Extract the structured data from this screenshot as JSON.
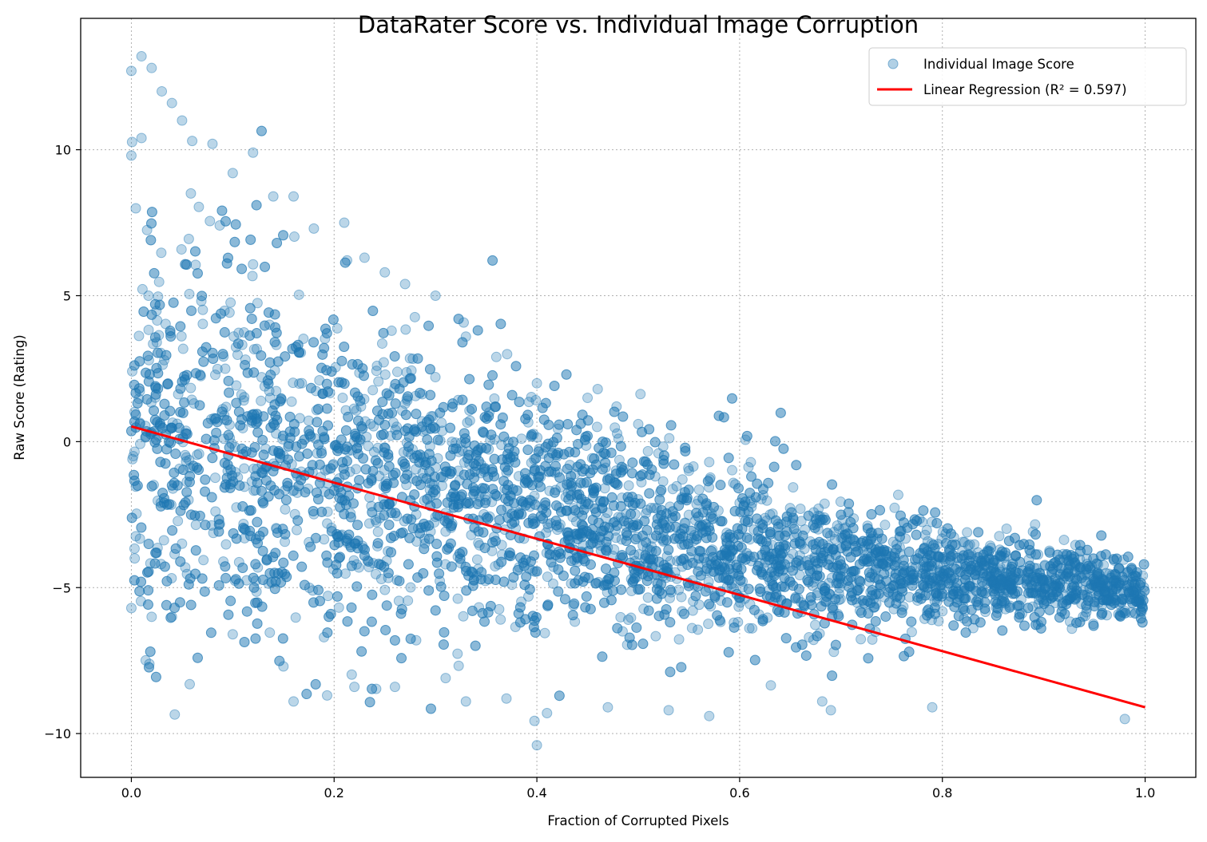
{
  "chart_data": {
    "type": "scatter",
    "title": "DataRater Score vs. Individual Image Corruption",
    "xlabel": "Fraction of Corrupted Pixels",
    "ylabel": "Raw Score (Rating)",
    "xlim": [
      -0.05,
      1.05
    ],
    "ylim": [
      -11.5,
      14.5
    ],
    "x_ticks": [
      0.0,
      0.2,
      0.4,
      0.6,
      0.8,
      1.0
    ],
    "x_tick_labels": [
      "0.0",
      "0.2",
      "0.4",
      "0.6",
      "0.8",
      "1.0"
    ],
    "y_ticks": [
      -10,
      -5,
      0,
      5,
      10
    ],
    "y_tick_labels": [
      "−10",
      "−5",
      "0",
      "5",
      "10"
    ],
    "grid": true,
    "legend_position": "top-right",
    "colors": {
      "points": "#1f77b4",
      "regression": "#ff0000",
      "grid": "#b0b0b0"
    },
    "series": [
      {
        "name": "Individual Image Score",
        "kind": "scatter",
        "points": [
          [
            0.0,
            12.7
          ],
          [
            0.01,
            13.2
          ],
          [
            0.02,
            12.8
          ],
          [
            0.03,
            12.0
          ],
          [
            0.04,
            11.6
          ],
          [
            0.05,
            11.0
          ],
          [
            0.0,
            9.8
          ],
          [
            0.01,
            10.4
          ],
          [
            0.06,
            10.3
          ],
          [
            0.08,
            10.2
          ],
          [
            0.1,
            9.2
          ],
          [
            0.12,
            9.9
          ],
          [
            0.14,
            8.4
          ],
          [
            0.16,
            8.4
          ],
          [
            0.18,
            7.3
          ],
          [
            0.21,
            7.5
          ],
          [
            0.23,
            6.3
          ],
          [
            0.25,
            5.8
          ],
          [
            0.27,
            5.4
          ],
          [
            0.3,
            5.0
          ],
          [
            0.33,
            3.6
          ],
          [
            0.36,
            2.9
          ],
          [
            0.4,
            2.0
          ],
          [
            0.45,
            1.5
          ],
          [
            0.46,
            1.8
          ],
          [
            0.5,
            0.6
          ],
          [
            0.52,
            -0.4
          ],
          [
            0.55,
            -1.0
          ],
          [
            0.57,
            -0.7
          ],
          [
            0.6,
            -2.1
          ],
          [
            0.63,
            -2.5
          ],
          [
            0.66,
            -2.3
          ],
          [
            0.68,
            -2.7
          ],
          [
            0.7,
            -3.3
          ],
          [
            0.73,
            -4.0
          ],
          [
            0.77,
            -4.3
          ],
          [
            0.8,
            -4.9
          ],
          [
            0.83,
            -5.0
          ],
          [
            0.86,
            -5.2
          ],
          [
            0.9,
            -5.5
          ],
          [
            0.93,
            -5.4
          ],
          [
            0.98,
            -5.8
          ],
          [
            0.0,
            -5.7
          ],
          [
            0.02,
            -6.0
          ],
          [
            0.04,
            -6.0
          ],
          [
            0.1,
            -6.6
          ],
          [
            0.15,
            -7.7
          ],
          [
            0.16,
            -8.9
          ],
          [
            0.19,
            -6.7
          ],
          [
            0.22,
            -8.4
          ],
          [
            0.26,
            -8.4
          ],
          [
            0.31,
            -8.1
          ],
          [
            0.33,
            -8.9
          ],
          [
            0.37,
            -8.8
          ],
          [
            0.41,
            -9.3
          ],
          [
            0.4,
            -10.4
          ],
          [
            0.47,
            -9.1
          ],
          [
            0.53,
            -9.2
          ],
          [
            0.57,
            -9.4
          ],
          [
            0.69,
            -9.2
          ],
          [
            0.79,
            -9.1
          ],
          [
            0.98,
            -9.5
          ]
        ]
      },
      {
        "name": "Linear Regression (R² = 0.597)",
        "kind": "line",
        "points": [
          [
            0.0,
            0.52
          ],
          [
            1.0,
            -9.1
          ]
        ]
      }
    ]
  }
}
